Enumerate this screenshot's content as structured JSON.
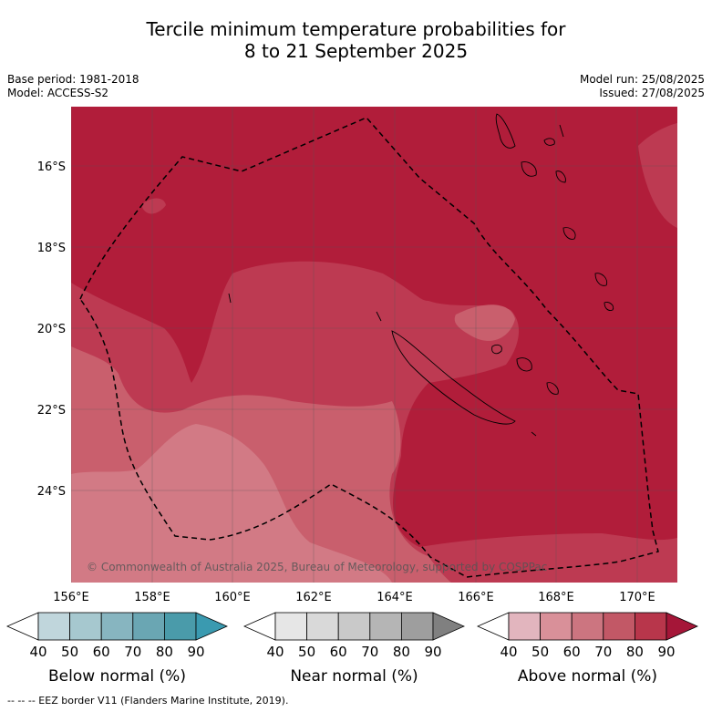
{
  "title": {
    "line1": "Tercile minimum temperature probabilities for",
    "line2": "8 to 21 September 2025"
  },
  "meta_left": {
    "base_period": "Base period: 1981-2018",
    "model": "Model: ACCESS-S2"
  },
  "meta_right": {
    "model_run": "Model run: 25/08/2025",
    "issued": "Issued: 27/08/2025"
  },
  "map": {
    "lat_labels": [
      "16°S",
      "18°S",
      "20°S",
      "22°S",
      "24°S"
    ],
    "lon_labels": [
      "156°E",
      "158°E",
      "160°E",
      "162°E",
      "164°E",
      "166°E",
      "168°E",
      "170°E"
    ],
    "watermark": "© Commonwealth of Australia 2025, Bureau of Meteorology, supported by COSPPac"
  },
  "colorbars": [
    {
      "label": "Below normal (%)",
      "ticks": [
        "40",
        "50",
        "60",
        "70",
        "80",
        "90"
      ],
      "colors": [
        "#ffffff",
        "#c0d6dc",
        "#a6c8cf",
        "#87b5c0",
        "#6aa6b3",
        "#4a9baa",
        "#3a9ab0"
      ]
    },
    {
      "label": "Near normal (%)",
      "ticks": [
        "40",
        "50",
        "60",
        "70",
        "80",
        "90"
      ],
      "colors": [
        "#ffffff",
        "#e6e6e6",
        "#d9d9d9",
        "#c9c9c9",
        "#b5b5b5",
        "#9e9e9e",
        "#808080"
      ]
    },
    {
      "label": "Above normal (%)",
      "ticks": [
        "40",
        "50",
        "60",
        "70",
        "80",
        "90"
      ],
      "colors": [
        "#ffffff",
        "#e2b5be",
        "#d99099",
        "#cc7580",
        "#c25866",
        "#b8364b",
        "#a51638"
      ]
    }
  ],
  "footnote": "--  --  -- EEZ border V11 (Flanders Marine Institute, 2019)."
}
